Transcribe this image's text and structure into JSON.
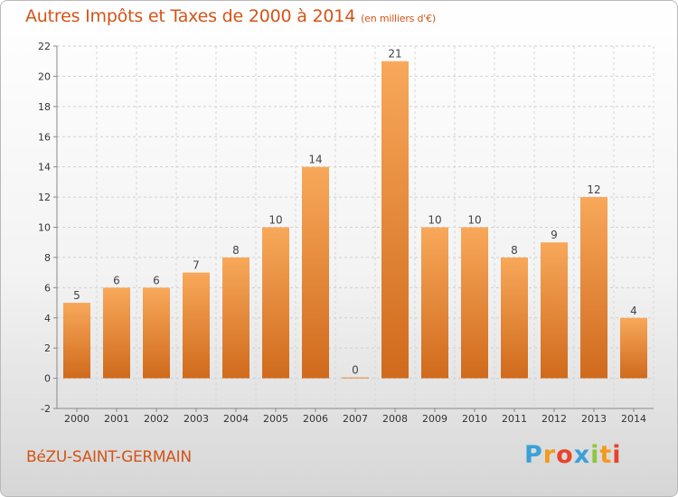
{
  "title": "Autres Impôts et Taxes de 2000 à 2014",
  "subtitle": "(en milliers d'€)",
  "commune": "BéZU-SAINT-GERMAIN",
  "logo": {
    "letters": [
      "P",
      "r",
      "o",
      "x",
      "i",
      "t",
      "i"
    ],
    "colors": [
      "#3ba0d8",
      "#f39a1e",
      "#e8432c",
      "#3ba0d8",
      "#8dc63f",
      "#f39a1e",
      "#e8432c"
    ]
  },
  "colors": {
    "title": "#d35418",
    "bar_top": "#f8a85a",
    "bar_bottom": "#d06a1c"
  },
  "chart_data": {
    "type": "bar",
    "categories": [
      "2000",
      "2001",
      "2002",
      "2003",
      "2004",
      "2005",
      "2006",
      "2007",
      "2008",
      "2009",
      "2010",
      "2011",
      "2012",
      "2013",
      "2014"
    ],
    "values": [
      5,
      6,
      6,
      7,
      8,
      10,
      14,
      0,
      21,
      10,
      10,
      8,
      9,
      12,
      4
    ],
    "ylim": [
      -2,
      22
    ],
    "yticks": [
      -2,
      0,
      2,
      4,
      6,
      8,
      10,
      12,
      14,
      16,
      18,
      20,
      22
    ],
    "grid": true,
    "xlabel": "",
    "ylabel": ""
  }
}
